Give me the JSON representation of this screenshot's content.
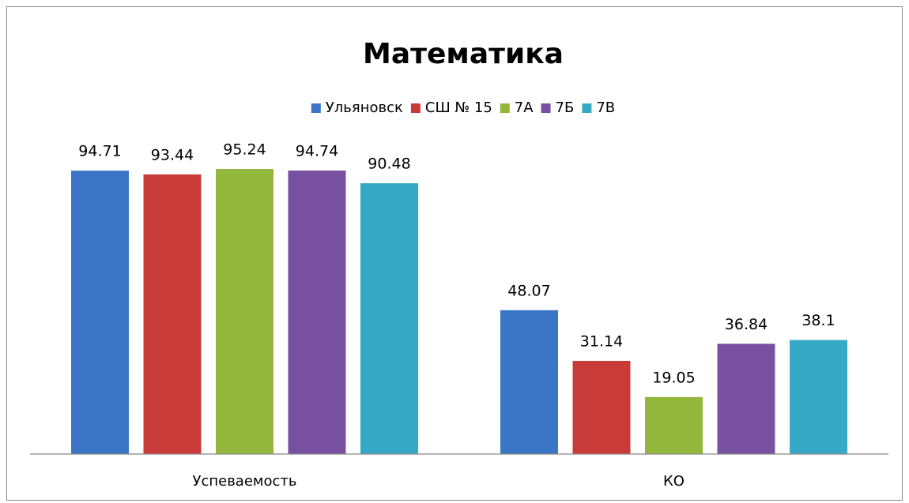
{
  "chart_data": {
    "type": "bar",
    "title": "Математика",
    "categories": [
      "Успеваемость",
      "КО"
    ],
    "series": [
      {
        "name": "Ульяновск",
        "color": "#3b76c6",
        "values": [
          94.71,
          48.07
        ]
      },
      {
        "name": "СШ № 15",
        "color": "#c83b39",
        "values": [
          93.44,
          31.14
        ]
      },
      {
        "name": "7А",
        "color": "#93b73d",
        "values": [
          95.24,
          19.05
        ]
      },
      {
        "name": "7Б",
        "color": "#7850a0",
        "values": [
          94.74,
          36.84
        ]
      },
      {
        "name": "7В",
        "color": "#35a9c6",
        "values": [
          90.48,
          38.1
        ]
      }
    ],
    "ylim": [
      0,
      100
    ],
    "legend": "top"
  }
}
